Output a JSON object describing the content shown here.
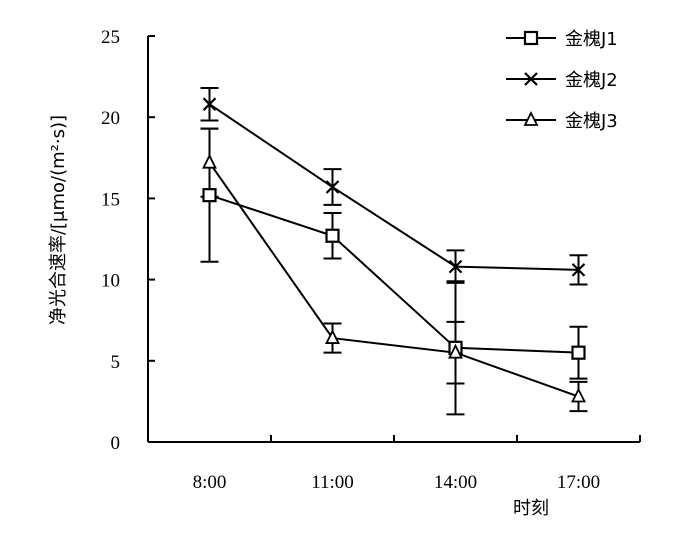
{
  "chart_data": {
    "type": "line",
    "categories": [
      "8:00",
      "11:00",
      "14:00",
      "17:00"
    ],
    "xlabel": "时刻",
    "ylabel": "净光合速率/[μmo/(m²·s)]",
    "ylim": [
      0,
      25
    ],
    "yticks": [
      0,
      5,
      10,
      15,
      20,
      25
    ],
    "grid": false,
    "legend_position": "top-right",
    "error_bars": true,
    "series": [
      {
        "name": "金槐J1",
        "marker": "square",
        "values": [
          15.2,
          12.7,
          5.8,
          5.5
        ],
        "errors": [
          4.1,
          1.4,
          4.1,
          1.6
        ]
      },
      {
        "name": "金槐J2",
        "marker": "x",
        "values": [
          20.8,
          15.7,
          10.8,
          10.6
        ],
        "errors": [
          1.0,
          1.1,
          1.0,
          0.9
        ]
      },
      {
        "name": "金槐J3",
        "marker": "triangle",
        "values": [
          17.2,
          6.4,
          5.5,
          2.8
        ],
        "errors": [
          2.1,
          0.9,
          1.9,
          0.9
        ]
      }
    ],
    "colors": {
      "line": "#000000",
      "axis": "#000000",
      "marker_fill": "#ffffff"
    }
  }
}
